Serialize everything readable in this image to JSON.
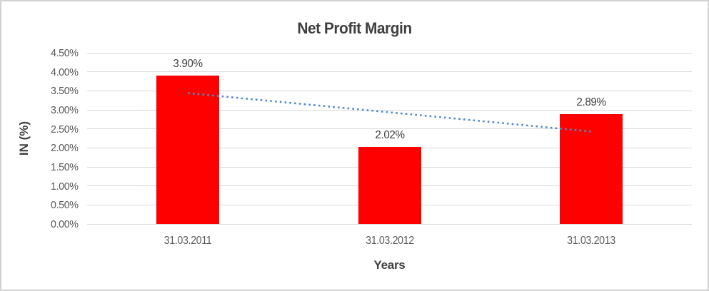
{
  "chart_data": {
    "type": "bar",
    "title": "Net Profit Margin",
    "categories": [
      "31.03.2011",
      "31.03.2012",
      "31.03.2013"
    ],
    "values": [
      3.9,
      2.02,
      2.89
    ],
    "data_labels": [
      "3.90%",
      "2.02%",
      "2.89%"
    ],
    "xlabel": "Years",
    "ylabel": "IN (%)",
    "ylim": [
      0,
      4.5
    ],
    "ytick_step": 0.5,
    "ytick_labels": [
      "0.00%",
      "0.50%",
      "1.00%",
      "1.50%",
      "2.00%",
      "2.50%",
      "3.00%",
      "3.50%",
      "4.00%",
      "4.50%"
    ],
    "grid": true,
    "legend": "none",
    "bar_color": "#FF0000",
    "trendline": {
      "type": "linear",
      "style": "dotted",
      "color": "#4F8BC9",
      "start_value": 3.44,
      "end_value": 2.43
    }
  },
  "colors": {
    "bar": "#FF0000",
    "trendline": "#4F8BC9",
    "gridline": "#D9D9D9",
    "tick_text": "#595959",
    "title_text": "#3F3F3F",
    "frame_border": "#D2D2D2",
    "background": "#FFFFFF"
  }
}
